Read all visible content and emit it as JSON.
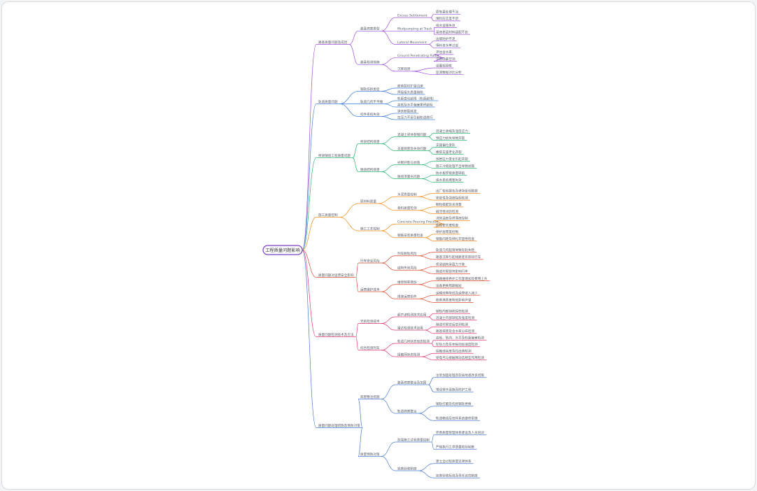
{
  "root": {
    "label": "工程质量问题影响",
    "color": "#7b3fc4",
    "branches": [
      {
        "label": "路基质量问题及成因",
        "color": "#a04cd8",
        "children": [
          {
            "label": "路基病害类型",
            "children": [
              {
                "label": "Excess Settlement",
                "children": [
                  "原地基处理不当",
                  "填料压实度不足"
                ]
              },
              {
                "label": "Mudpumping at Track",
                "children": [
                  "排水设施失效",
                  "基床表层材料级配不良"
                ]
              },
              {
                "label": "Lateral Movement",
                "children": [
                  "边坡防护不足",
                  "填料含水率过高"
                ]
              }
            ]
          },
          {
            "label": "路基检测措施",
            "children": [
              {
                "label": "Ground Penetrating Radar",
                "children": [
                  "评估含水率",
                  "识别隐蔽空洞"
                ]
              },
              {
                "label": "沉降观测",
                "children": [
                  "设置观测桩",
                  "监测数据对比分析"
                ]
              }
            ]
          }
        ]
      },
      {
        "label": "轨道质量问题",
        "color": "#3f7fd9",
        "children": [
          {
            "label": "钢轨伤损类型",
            "children": [
              "疲劳裂纹扩展迅速",
              "焊接接头质量缺陷"
            ]
          },
          {
            "label": "轨道几何不平顺",
            "children": [
              "轨距变化超限（轨距超限）",
              "高低及水平偏差累积超标"
            ]
          },
          {
            "label": "扣件系统失效",
            "children": [
              "弹条断裂频发",
              "扣压力不足引起轨道爬行"
            ]
          }
        ]
      },
      {
        "label": "桥梁隧道工程质量问题",
        "color": "#2bb673",
        "children": [
          {
            "label": "桥梁结构病害",
            "children": [
              {
                "label": "混凝土梁体裂缝问题",
                "children": [
                  "混凝土收缩及温度应力",
                  "预应力损失导致开裂"
                ]
              },
              {
                "label": "支座病害及失效问题",
                "children": [
                  "支座偏位变形",
                  "橡胶支座老化开裂"
                ]
              }
            ]
          },
          {
            "label": "隧道结构病害",
            "children": [
              {
                "label": "衬砌开裂与剥落",
                "children": [
                  "围岩压力变化引起开裂",
                  "施工冷缝处理不当导致剥落"
                ]
              },
              {
                "label": "隧道渗漏水问题",
                "children": [
                  "防水板焊接质量缺陷",
                  "排水系统堵塞失效"
                ]
              }
            ]
          }
        ]
      },
      {
        "label": "施工质量控制",
        "color": "#f08c1a",
        "children": [
          {
            "label": "原材料质量",
            "children": [
              {
                "label": "水泥质量控制",
                "children": [
                  "出厂检验报告及进场复验数据",
                  "安定性及强度指标检测"
                ]
              },
              {
                "label": "骨料质量检测",
                "children": [
                  "颗粒级配及含泥量",
                  "碱活性试验检测"
                ]
              }
            ]
          },
          {
            "label": "施工工艺控制",
            "children": [
              {
                "label": "Concrete Pouring Process",
                "children": [
                  "浇筑温度及坍落度控制",
                  "振捣密实度检查"
                ]
              },
              {
                "label": "钢筋安装质量检查",
                "children": [
                  "保护层厚度控制",
                  "钢筋间距及绑扎牢固性检查"
                ]
              }
            ]
          }
        ]
      },
      {
        "label": "质量问题对运营安全影响",
        "color": "#e0492f",
        "children": [
          {
            "label": "行车安全风险",
            "children": [
              {
                "label": "列车脱轨风险",
                "children": [
                  "轨道几何超限导致轮轨失稳",
                  "路基沉降引起线路变形影响行车"
                ]
              },
              {
                "label": "结构失效风险",
                "children": [
                  "桥梁结构承载力下降",
                  "隧道衬砌掉块影响行车"
                ]
              }
            ]
          },
          {
            "label": "运营维护成本",
            "children": [
              {
                "label": "维修频率增加",
                "children": [
                  "线路维修养护工作量增加及费用上升",
                  "设备更换周期缩短"
                ]
              },
              {
                "label": "限速运营损失",
                "children": [
                  "运输效率降低及运营收入减少",
                  "旅客满意度降低影响声誉"
                ]
              }
            ]
          }
        ]
      },
      {
        "label": "质量问题检测技术及方法",
        "color": "#e0366f",
        "children": [
          {
            "label": "无损检测技术",
            "children": [
              {
                "label": "超声波检测技术应用",
                "children": [
                  "钢轨内部缺陷探伤检测",
                  "混凝土内部缺陷及强度检测"
                ]
              },
              {
                "label": "雷达检测技术应用",
                "children": [
                  "隧道衬砌背后空洞检测",
                  "路基病害及含水率分布检测"
                ]
              }
            ]
          },
          {
            "label": "综合检测列车",
            "children": [
              {
                "label": "轨道几何状态动态检测",
                "children": [
                  "高低、轨向、水平及轨距偏差检测",
                  "轮轨力及车体振动加速度检测"
                ]
              },
              {
                "label": "接触网状态检测",
                "children": [
                  "接触线高度及拉出值检测",
                  "受电弓与接触网动态相互作用检测"
                ]
              }
            ]
          }
        ]
      },
      {
        "label": "质量问题处理措施及预防对策",
        "color": "#4a7bd0",
        "children": [
          {
            "label": "病害整治措施",
            "children": [
              {
                "label": "路基病害整治及加固",
                "children": [
                  "注浆加固处理及软弱地基改良措施",
                  "增设排水设施及防护工程"
                ]
              },
              {
                "label": "轨道病害整治",
                "children": [
                  "钢轨打磨及伤损钢轨更换",
                  "轨道精调及扣件系统维修更换"
                ]
              }
            ]
          },
          {
            "label": "质量预防对策",
            "children": [
              {
                "label": "加强施工过程质量控制",
                "children": [
                  "完善质量管理体系建设及人员培训",
                  "严格执行工序质量检验制度"
                ]
              },
              {
                "label": "完善验收制度",
                "children": [
                  "建立全过程质量追溯体系",
                  "完善验收标准及责任追究制度"
                ]
              }
            ]
          }
        ]
      }
    ]
  }
}
